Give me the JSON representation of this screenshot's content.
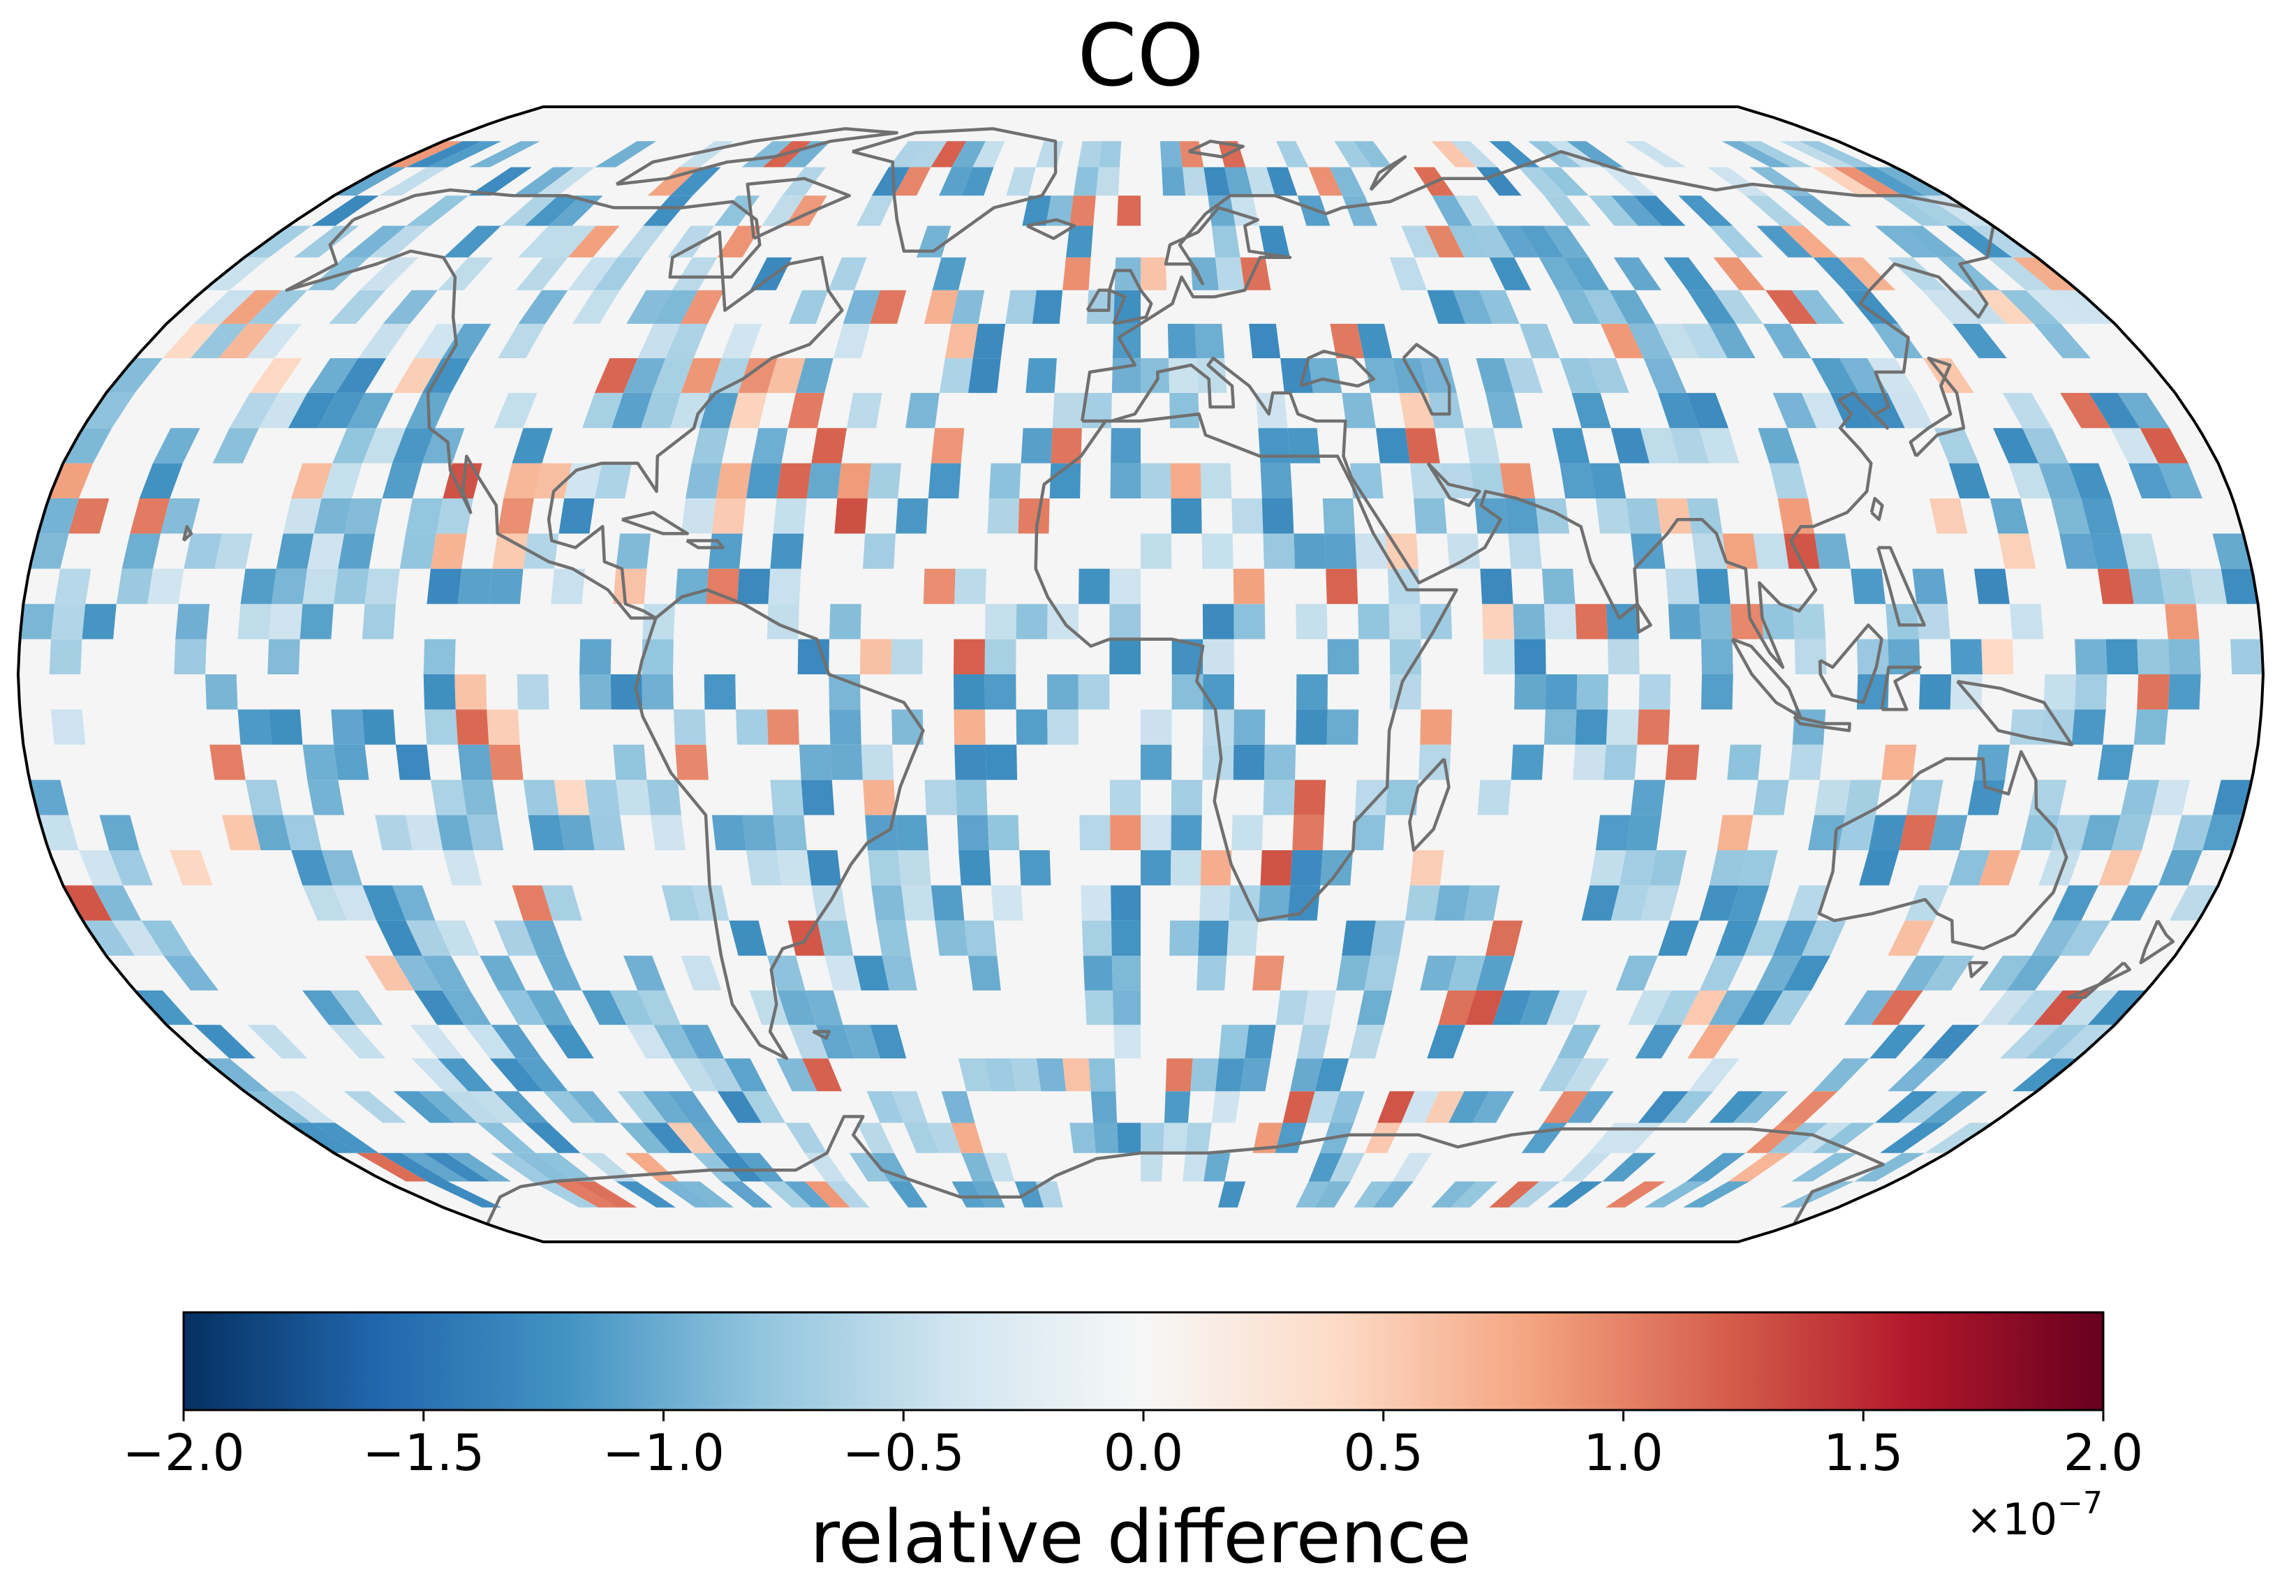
{
  "chart_data": {
    "type": "heatmap",
    "title": "CO",
    "projection": "Robinson",
    "field_description": "gridded global field of relative difference; mostly near zero with scattered small negative (blue) and positive (red) cells",
    "grid": {
      "lon_cells": 72,
      "lat_cells": 36,
      "lon_range": [
        -180,
        180
      ],
      "lat_range": [
        -90,
        90
      ]
    },
    "colormap": "RdBu_r",
    "colormap_stops": [
      "#053061",
      "#2166ac",
      "#4393c3",
      "#92c5de",
      "#d1e5f0",
      "#f7f7f7",
      "#fddbc7",
      "#f4a582",
      "#d6604d",
      "#b2182b",
      "#67001f"
    ],
    "vmin": -2e-07,
    "vmax": 2e-07,
    "colorbar": {
      "label": "relative difference",
      "ticks": [
        -2.0,
        -1.5,
        -1.0,
        -0.5,
        0.0,
        0.5,
        1.0,
        1.5,
        2.0
      ],
      "tick_labels": [
        "−2.0",
        "−1.5",
        "−1.0",
        "−0.5",
        "0.0",
        "0.5",
        "1.0",
        "1.5",
        "2.0"
      ],
      "offset_text": "×10",
      "offset_exponent": "−7"
    },
    "coastline_color": "#707070",
    "background_color": "#f5f5f5"
  }
}
